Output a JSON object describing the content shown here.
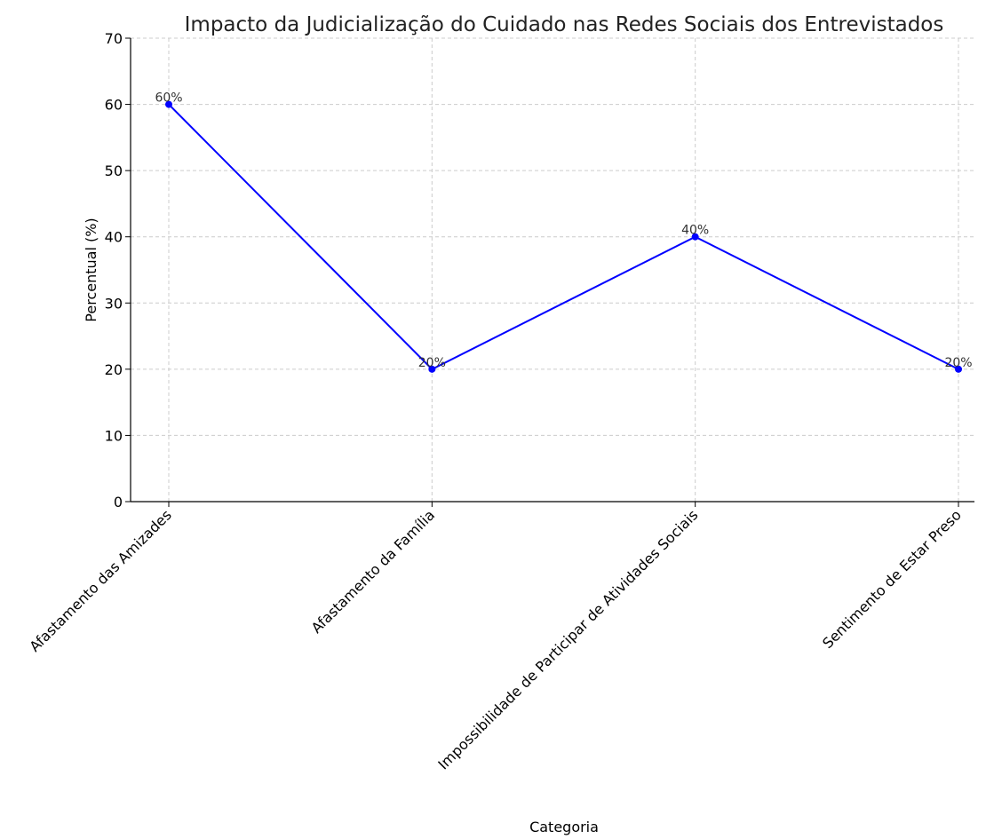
{
  "chart_data": {
    "type": "line",
    "title": "Impacto da Judicialização do Cuidado nas Redes Sociais dos Entrevistados",
    "xlabel": "Categoria",
    "ylabel": "Percentual (%)",
    "categories": [
      "Afastamento das Amizades",
      "Afastamento da Família",
      "Impossibilidade de Participar de Atividades Sociais",
      "Sentimento de Estar Preso"
    ],
    "series": [
      {
        "values": [
          60,
          20,
          40,
          20
        ],
        "data_labels": [
          "60%",
          "20%",
          "40%",
          "20%"
        ],
        "color": "#0000ff",
        "marker": "circle"
      }
    ],
    "ylim": [
      0,
      70
    ],
    "yticks": [
      0,
      10,
      20,
      30,
      40,
      50,
      60,
      70
    ],
    "grid": true
  }
}
